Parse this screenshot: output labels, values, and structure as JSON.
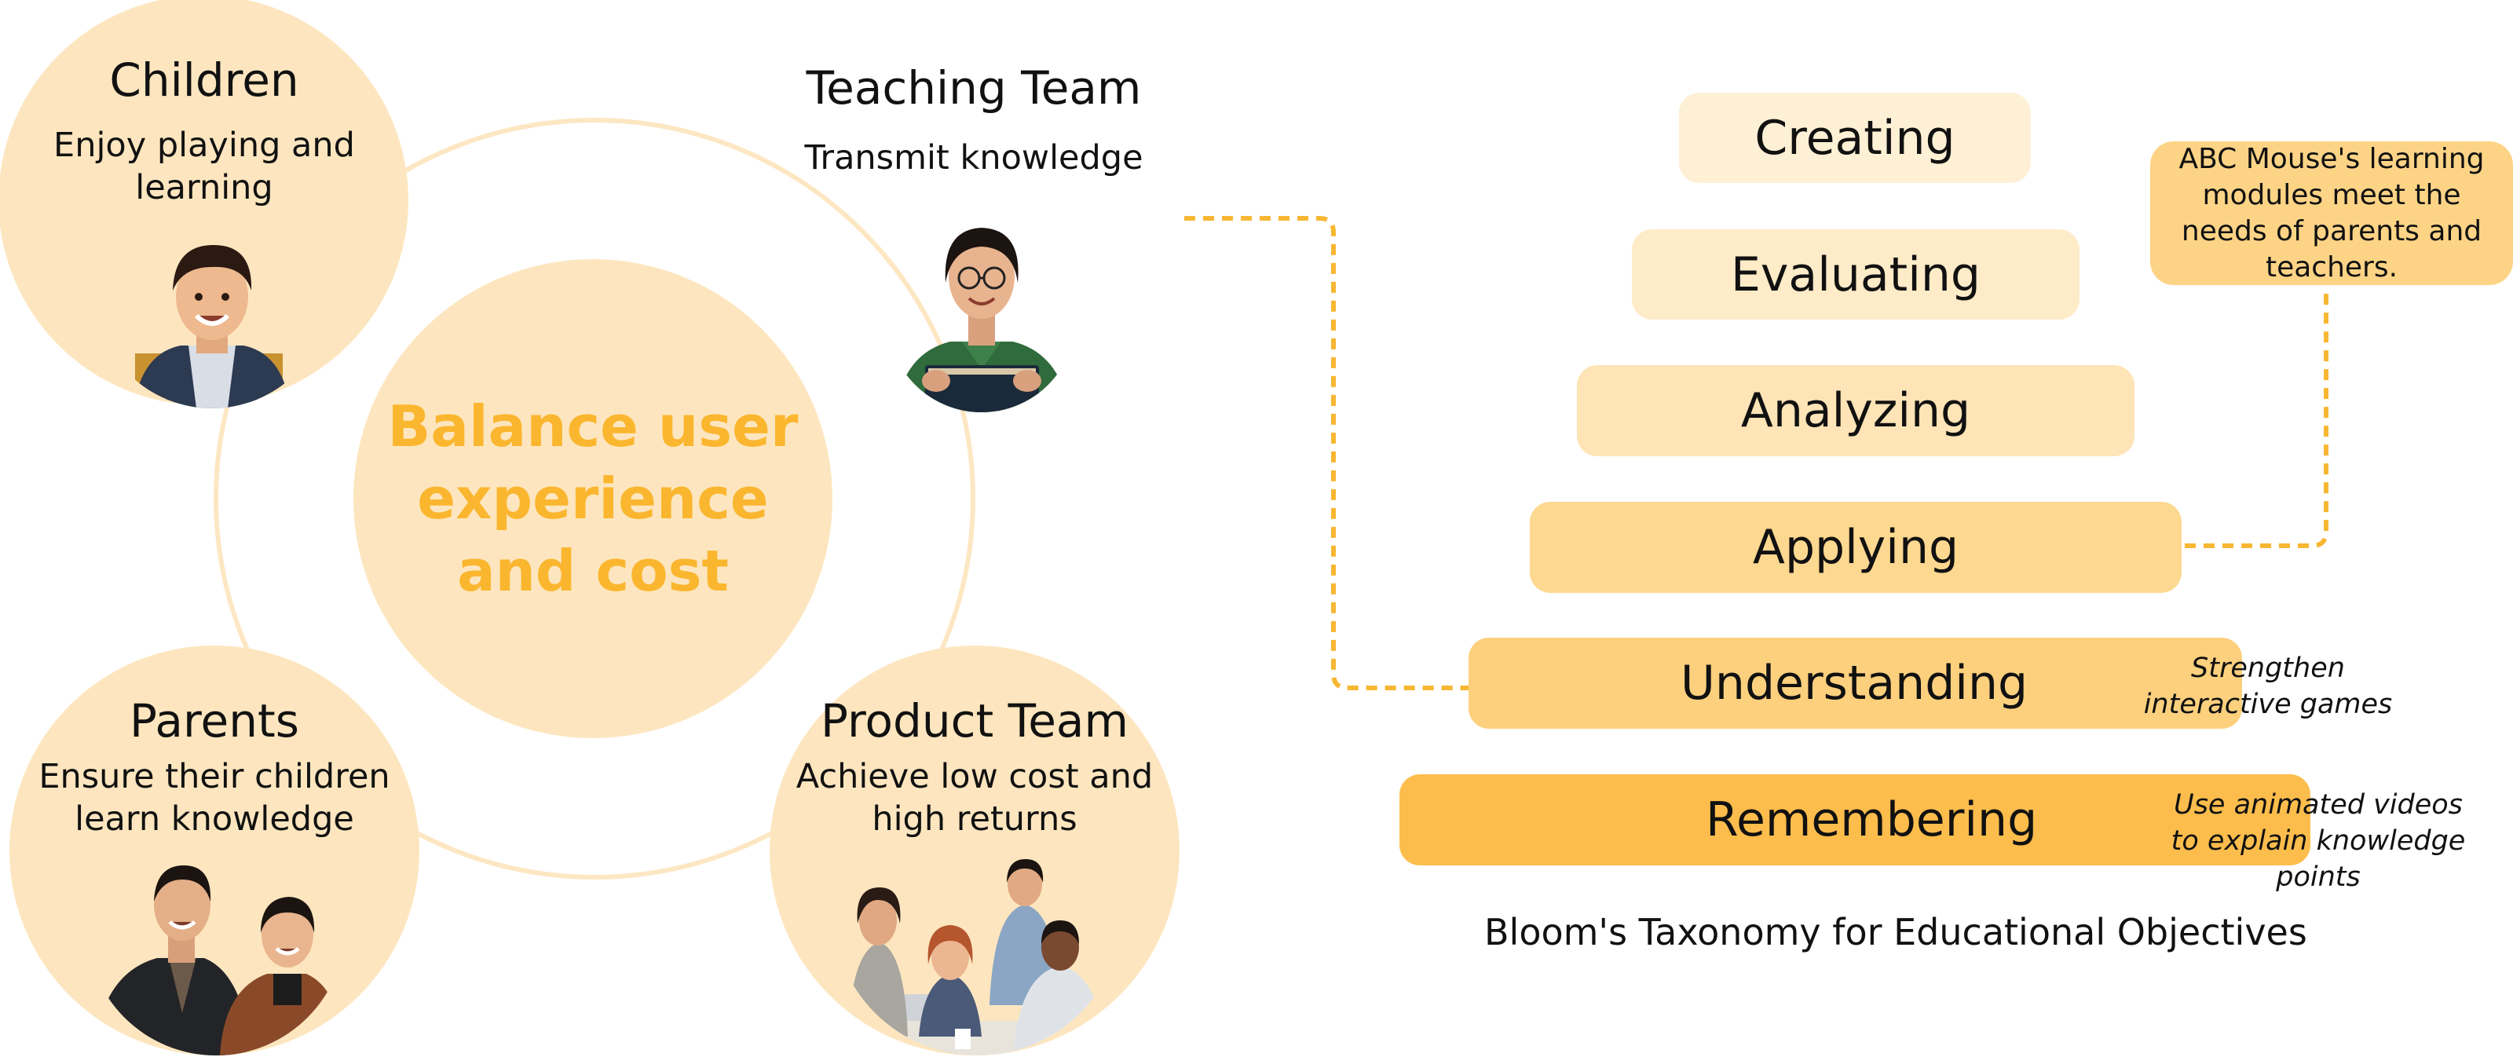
{
  "stakeholders": {
    "center": {
      "text": "Balance user experience and cost"
    },
    "children": {
      "title": "Children",
      "description": "Enjoy playing and learning"
    },
    "teaching_team": {
      "title": "Teaching Team",
      "description": "Transmit knowledge"
    },
    "parents": {
      "title": "Parents",
      "description": "Ensure their children learn knowledge"
    },
    "product_team": {
      "title": "Product Team",
      "description": "Achieve low cost and high returns"
    }
  },
  "pyramid": {
    "caption": "Bloom's Taxonomy for Educational Objectives",
    "levels": [
      {
        "label": "Creating",
        "color": "#fef0d5"
      },
      {
        "label": "Evaluating",
        "color": "#feebc8"
      },
      {
        "label": "Analyzing",
        "color": "#fee4b6"
      },
      {
        "label": "Applying",
        "color": "#fdd890"
      },
      {
        "label": "Understanding",
        "color": "#fdd07e"
      },
      {
        "label": "Remembering",
        "color": "#fdbd4c"
      }
    ],
    "notes": {
      "applying": "ABC Mouse's learning modules meet the needs of parents and teachers.",
      "understanding": "Strengthen interactive games",
      "remembering": "Use animated videos to explain knowledge points"
    }
  },
  "colors": {
    "accent": "#fbb62f",
    "connector": "#f7b733",
    "circle_fill": "#fde6bf"
  }
}
